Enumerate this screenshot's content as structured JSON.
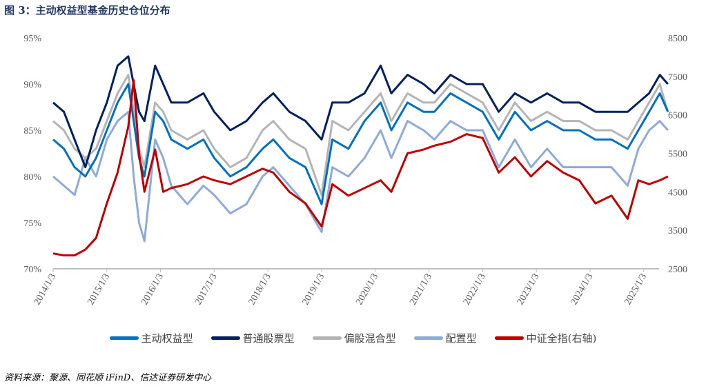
{
  "title": "图 3：主动权益型基金历史仓位分布",
  "source": "资料来源：聚源、同花顺 iFinD、信达证券研发中心",
  "chart_data": {
    "type": "line",
    "title": "图 3：主动权益型基金历史仓位分布",
    "left_axis": {
      "ylim": [
        70,
        95
      ],
      "ticks": [
        "70%",
        "75%",
        "80%",
        "85%",
        "90%",
        "95%"
      ],
      "values": [
        70,
        75,
        80,
        85,
        90,
        95
      ]
    },
    "right_axis": {
      "ylim": [
        2500,
        8500
      ],
      "ticks": [
        "2500",
        "3500",
        "4500",
        "5500",
        "6500",
        "7500",
        "8500"
      ],
      "values": [
        2500,
        3500,
        4500,
        5500,
        6500,
        7500,
        8500
      ]
    },
    "x_ticks": [
      "2014/1/3",
      "2015/1/3",
      "2016/1/3",
      "2017/1/3",
      "2018/1/3",
      "2019/1/3",
      "2020/1/3",
      "2021/1/3",
      "2022/1/3",
      "2023/1/3",
      "2024/1/3",
      "2025/1/3"
    ],
    "xlim": [
      2014.0,
      2025.5
    ],
    "legend_position": "bottom",
    "grid": false,
    "x": [
      2014.0,
      2014.2,
      2014.4,
      2014.6,
      2014.8,
      2015.0,
      2015.2,
      2015.4,
      2015.5,
      2015.6,
      2015.7,
      2015.9,
      2016.05,
      2016.2,
      2016.5,
      2016.8,
      2017.0,
      2017.3,
      2017.6,
      2017.9,
      2018.1,
      2018.4,
      2018.7,
      2019.0,
      2019.2,
      2019.5,
      2019.8,
      2020.1,
      2020.3,
      2020.6,
      2020.9,
      2021.1,
      2021.4,
      2021.7,
      2022.0,
      2022.3,
      2022.6,
      2022.9,
      2023.2,
      2023.5,
      2023.8,
      2024.1,
      2024.4,
      2024.7,
      2024.9,
      2025.1,
      2025.3,
      2025.45
    ],
    "series": [
      {
        "name": "主动权益型",
        "axis": "left",
        "color": "#0070c0",
        "values": [
          84,
          83,
          81,
          80,
          82,
          85,
          88,
          90,
          86,
          82,
          80,
          87,
          86,
          84,
          83,
          84,
          82,
          80,
          81,
          83,
          84,
          82,
          81,
          77,
          84,
          83,
          86,
          88,
          85,
          88,
          87,
          87,
          89,
          88,
          87,
          84,
          87,
          85,
          86,
          85,
          85,
          84,
          84,
          83,
          85,
          87,
          89,
          87
        ]
      },
      {
        "name": "普通股票型",
        "axis": "left",
        "color": "#002060",
        "values": [
          88,
          87,
          84,
          81,
          85,
          88,
          92,
          93,
          90,
          87,
          86,
          92,
          90,
          88,
          88,
          89,
          87,
          85,
          86,
          88,
          89,
          87,
          86,
          84,
          88,
          88,
          89,
          92,
          89,
          91,
          90,
          89,
          91,
          90,
          90,
          87,
          89,
          88,
          89,
          88,
          88,
          87,
          87,
          87,
          88,
          89,
          91,
          90
        ]
      },
      {
        "name": "偏股混合型",
        "axis": "left",
        "color": "#b4b4b4",
        "values": [
          86,
          85,
          83,
          82,
          83,
          86,
          89,
          91,
          87,
          83,
          81,
          88,
          87,
          85,
          84,
          85,
          83,
          81,
          82,
          85,
          86,
          84,
          83,
          78,
          86,
          85,
          87,
          89,
          86,
          89,
          88,
          88,
          90,
          89,
          88,
          85,
          88,
          86,
          87,
          86,
          86,
          85,
          85,
          84,
          86,
          88,
          90,
          87
        ]
      },
      {
        "name": "配置型",
        "axis": "left",
        "color": "#8eaadb",
        "values": [
          80,
          79,
          78,
          82,
          80,
          84,
          86,
          87,
          80,
          75,
          73,
          84,
          82,
          79,
          77,
          79,
          78,
          76,
          77,
          80,
          81,
          79,
          77,
          74,
          81,
          80,
          82,
          85,
          82,
          86,
          85,
          84,
          86,
          85,
          85,
          81,
          84,
          81,
          83,
          81,
          81,
          81,
          81,
          79,
          83,
          85,
          86,
          85
        ]
      },
      {
        "name": "中证全指(右轴)",
        "axis": "right",
        "color": "#c00000",
        "values": [
          2900,
          2850,
          2850,
          3000,
          3300,
          4200,
          5000,
          6200,
          7400,
          5500,
          4500,
          5600,
          4500,
          4600,
          4700,
          4900,
          4800,
          4700,
          4900,
          5100,
          5000,
          4500,
          4200,
          3600,
          4700,
          4400,
          4600,
          4800,
          4500,
          5500,
          5600,
          5700,
          5800,
          6000,
          5900,
          5000,
          5400,
          4900,
          5300,
          5000,
          4800,
          4200,
          4400,
          3800,
          4800,
          4700,
          4800,
          4900
        ]
      }
    ]
  }
}
